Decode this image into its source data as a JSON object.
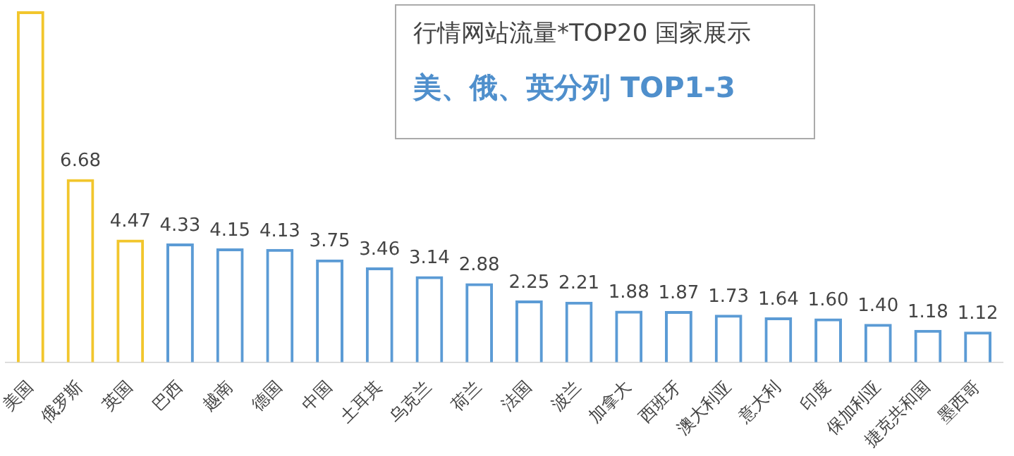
{
  "chart_data": {
    "type": "bar",
    "title": "行情网站流量*TOP20 国家展示",
    "subtitle": "美、俄、英分列 TOP1-3",
    "categories": [
      "美国",
      "俄罗斯",
      "英国",
      "巴西",
      "越南",
      "德国",
      "中国",
      "土耳其",
      "乌克兰",
      "荷兰",
      "法国",
      "波兰",
      "加拿大",
      "西班牙",
      "澳大利亚",
      "意大利",
      "印度",
      "保加利亚",
      "捷克共和国",
      "墨西哥"
    ],
    "values": [
      12.8,
      6.68,
      4.47,
      4.33,
      4.15,
      4.13,
      3.75,
      3.46,
      3.14,
      2.88,
      2.25,
      2.21,
      1.88,
      1.87,
      1.73,
      1.64,
      1.6,
      1.4,
      1.18,
      1.12
    ],
    "value_labels": [
      null,
      "6.68",
      "4.47",
      "4.33",
      "4.15",
      "4.13",
      "3.75",
      "3.46",
      "3.14",
      "2.88",
      "2.25",
      "2.21",
      "1.88",
      "1.87",
      "1.73",
      "1.64",
      "1.60",
      "1.40",
      "1.18",
      "1.12"
    ],
    "colors": [
      "#f2c62c",
      "#f2c62c",
      "#f2c62c",
      "#5b9bd5",
      "#5b9bd5",
      "#5b9bd5",
      "#5b9bd5",
      "#5b9bd5",
      "#5b9bd5",
      "#5b9bd5",
      "#5b9bd5",
      "#5b9bd5",
      "#5b9bd5",
      "#5b9bd5",
      "#5b9bd5",
      "#5b9bd5",
      "#5b9bd5",
      "#5b9bd5",
      "#5b9bd5",
      "#5b9bd5"
    ],
    "legend": false,
    "grid": false
  }
}
